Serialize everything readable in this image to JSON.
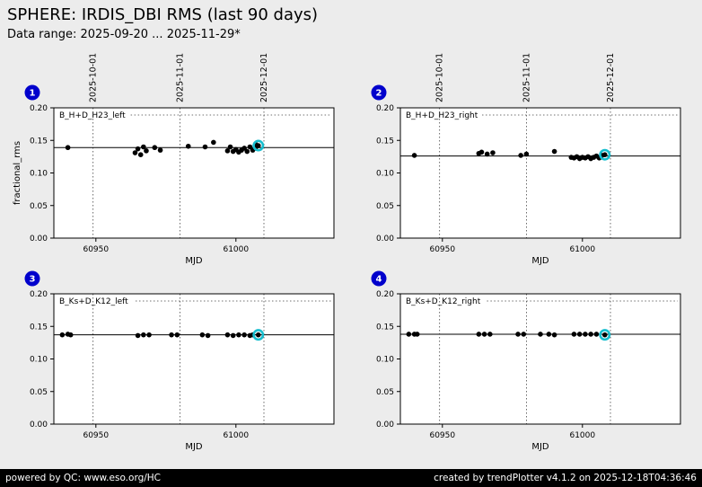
{
  "header": {
    "title": "SPHERE: IRDIS_DBI RMS (last 90 days)",
    "subtitle": "Data range: 2025-09-20 ... 2025-11-29*"
  },
  "footer": {
    "left": "powered by QC: www.eso.org/HC",
    "right": "created by trendPlotter v4.1.2 on 2025-12-18T04:36:46"
  },
  "colors": {
    "page_background": "#ececec",
    "plot_background": "#ffffff",
    "frame": "#000000",
    "point": "#000000",
    "mean_line": "#000000",
    "gridline": "#444444",
    "highlight_ring": "#17becf",
    "badge_fill": "#0000cc",
    "badge_text": "#ffffff",
    "footer_background": "#000000",
    "footer_text": "#ffffff"
  },
  "chart_data": [
    {
      "type": "scatter",
      "panel_number": "1",
      "label": "B_H+D_H23_left",
      "xlabel": "MJD",
      "ylabel": "fractional_rms",
      "xlim": [
        60935,
        61035
      ],
      "ylim": [
        0.0,
        0.2
      ],
      "xticks": [
        60950,
        61000
      ],
      "yticks": [
        0.0,
        0.05,
        0.1,
        0.15,
        0.2
      ],
      "show_date_labels": true,
      "date_gridlines": [
        {
          "mjd": 60949,
          "label": "2025-10-01"
        },
        {
          "mjd": 60980,
          "label": "2025-11-01"
        },
        {
          "mjd": 61010,
          "label": "2025-12-01"
        }
      ],
      "mean_line": 0.139,
      "points": [
        [
          60940,
          0.139
        ],
        [
          60964,
          0.131
        ],
        [
          60965,
          0.137
        ],
        [
          60966,
          0.128
        ],
        [
          60967,
          0.14
        ],
        [
          60968,
          0.134
        ],
        [
          60971,
          0.139
        ],
        [
          60973,
          0.135
        ],
        [
          60983,
          0.141
        ],
        [
          60989,
          0.14
        ],
        [
          60992,
          0.147
        ],
        [
          60997,
          0.134
        ],
        [
          60998,
          0.14
        ],
        [
          60999,
          0.133
        ],
        [
          61000,
          0.136
        ],
        [
          61001,
          0.132
        ],
        [
          61002,
          0.135
        ],
        [
          61003,
          0.138
        ],
        [
          61004,
          0.133
        ],
        [
          61005,
          0.14
        ],
        [
          61006,
          0.135
        ],
        [
          61007,
          0.138
        ],
        [
          61007,
          0.144
        ]
      ],
      "highlight_point": [
        61008,
        0.142
      ]
    },
    {
      "type": "scatter",
      "panel_number": "2",
      "label": "B_H+D_H23_right",
      "xlabel": "MJD",
      "ylabel": "",
      "xlim": [
        60935,
        61035
      ],
      "ylim": [
        0.0,
        0.2
      ],
      "xticks": [
        60950,
        61000
      ],
      "yticks": [
        0.0,
        0.05,
        0.1,
        0.15,
        0.2
      ],
      "show_date_labels": true,
      "date_gridlines": [
        {
          "mjd": 60949,
          "label": "2025-10-01"
        },
        {
          "mjd": 60980,
          "label": "2025-11-01"
        },
        {
          "mjd": 61010,
          "label": "2025-12-01"
        }
      ],
      "mean_line": 0.126,
      "points": [
        [
          60940,
          0.127
        ],
        [
          60963,
          0.13
        ],
        [
          60964,
          0.132
        ],
        [
          60966,
          0.129
        ],
        [
          60968,
          0.131
        ],
        [
          60978,
          0.127
        ],
        [
          60980,
          0.129
        ],
        [
          60990,
          0.133
        ],
        [
          60996,
          0.124
        ],
        [
          60997,
          0.123
        ],
        [
          60998,
          0.125
        ],
        [
          60999,
          0.122
        ],
        [
          61000,
          0.124
        ],
        [
          61001,
          0.123
        ],
        [
          61002,
          0.125
        ],
        [
          61003,
          0.122
        ],
        [
          61004,
          0.124
        ],
        [
          61005,
          0.126
        ],
        [
          61006,
          0.123
        ],
        [
          61007,
          0.127
        ]
      ],
      "highlight_point": [
        61008,
        0.128
      ]
    },
    {
      "type": "scatter",
      "panel_number": "3",
      "label": "B_Ks+D_K12_left",
      "xlabel": "MJD",
      "ylabel": "",
      "xlim": [
        60935,
        61035
      ],
      "ylim": [
        0.0,
        0.2
      ],
      "xticks": [
        60950,
        61000
      ],
      "yticks": [
        0.0,
        0.05,
        0.1,
        0.15,
        0.2
      ],
      "show_date_labels": false,
      "date_gridlines": [
        {
          "mjd": 60949,
          "label": "2025-10-01"
        },
        {
          "mjd": 60980,
          "label": "2025-11-01"
        },
        {
          "mjd": 61010,
          "label": "2025-12-01"
        }
      ],
      "mean_line": 0.137,
      "points": [
        [
          60938,
          0.137
        ],
        [
          60940,
          0.138
        ],
        [
          60941,
          0.137
        ],
        [
          60965,
          0.136
        ],
        [
          60967,
          0.137
        ],
        [
          60969,
          0.137
        ],
        [
          60977,
          0.137
        ],
        [
          60979,
          0.137
        ],
        [
          60988,
          0.137
        ],
        [
          60990,
          0.136
        ],
        [
          60997,
          0.137
        ],
        [
          60999,
          0.136
        ],
        [
          61001,
          0.137
        ],
        [
          61003,
          0.137
        ],
        [
          61005,
          0.136
        ],
        [
          61006,
          0.137
        ]
      ],
      "highlight_point": [
        61008,
        0.137
      ]
    },
    {
      "type": "scatter",
      "panel_number": "4",
      "label": "B_Ks+D_K12_right",
      "xlabel": "MJD",
      "ylabel": "",
      "xlim": [
        60935,
        61035
      ],
      "ylim": [
        0.0,
        0.2
      ],
      "xticks": [
        60950,
        61000
      ],
      "yticks": [
        0.0,
        0.05,
        0.1,
        0.15,
        0.2
      ],
      "show_date_labels": false,
      "date_gridlines": [
        {
          "mjd": 60949,
          "label": "2025-10-01"
        },
        {
          "mjd": 60980,
          "label": "2025-11-01"
        },
        {
          "mjd": 61010,
          "label": "2025-12-01"
        }
      ],
      "mean_line": 0.138,
      "points": [
        [
          60938,
          0.138
        ],
        [
          60940,
          0.138
        ],
        [
          60941,
          0.138
        ],
        [
          60963,
          0.138
        ],
        [
          60965,
          0.138
        ],
        [
          60967,
          0.138
        ],
        [
          60977,
          0.138
        ],
        [
          60979,
          0.138
        ],
        [
          60985,
          0.138
        ],
        [
          60988,
          0.138
        ],
        [
          60990,
          0.137
        ],
        [
          60997,
          0.138
        ],
        [
          60999,
          0.138
        ],
        [
          61001,
          0.138
        ],
        [
          61003,
          0.138
        ],
        [
          61005,
          0.138
        ]
      ],
      "highlight_point": [
        61008,
        0.137
      ]
    }
  ]
}
